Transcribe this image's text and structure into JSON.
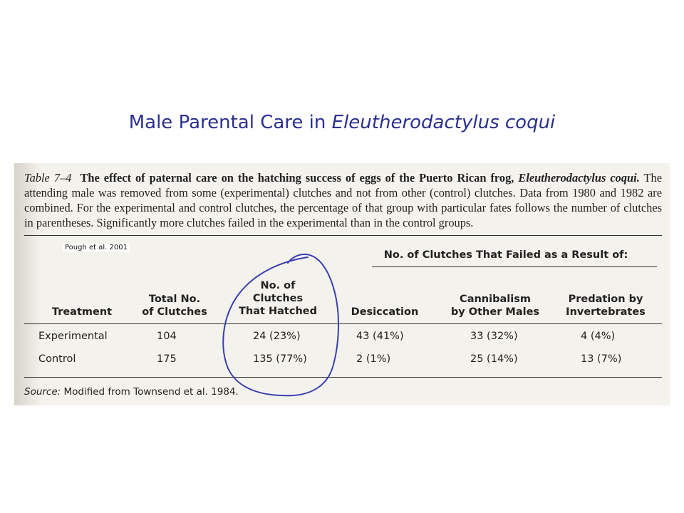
{
  "slide": {
    "title_plain": "Male Parental Care in ",
    "title_italic": "Eleutherodactylus coqui"
  },
  "table": {
    "number": "Table 7–4",
    "caption_bold": "The effect of paternal care on the hatching success of eggs of the Puerto Rican frog,",
    "caption_species": "Eleutherodactylus coqui.",
    "caption_rest": "The attending male was removed from some (experimental) clutches and not from other (control) clutches. Data from 1980 and 1982 are combined. For the experimental and control clutches, the percentage of that group with particular fates follows the number of clutches in parentheses. Significantly more clutches failed in the experimental than in the control groups.",
    "citation": "Pough et al. 2001",
    "group_header": "No. of Clutches That Failed as a Result of:",
    "columns": [
      "Treatment",
      "Total No. of Clutches",
      "No. of Clutches That Hatched",
      "Desiccation",
      "Cannibalism by Other Males",
      "Predation by Invertebrates"
    ],
    "column_lines": {
      "total": [
        "Total No.",
        "of Clutches"
      ],
      "hatched": [
        "No. of",
        "Clutches",
        "That Hatched"
      ],
      "cannibal": [
        "Cannibalism",
        "by Other Males"
      ],
      "predation": [
        "Predation by",
        "Invertebrates"
      ]
    },
    "rows": [
      {
        "treatment": "Experimental",
        "total": "104",
        "hatched": "24 (23%)",
        "desiccation": "43 (41%)",
        "cannibalism": "33 (32%)",
        "predation": "4 (4%)"
      },
      {
        "treatment": "Control",
        "total": "175",
        "hatched": "135 (77%)",
        "desiccation": "2 (1%)",
        "cannibalism": "25 (14%)",
        "predation": "13 (7%)"
      }
    ],
    "source_label": "Source:",
    "source_text": " Modified from Townsend et al. 1984."
  },
  "colors": {
    "title": "#2b2f8f",
    "annotation_ink": "#3a3fb0"
  }
}
